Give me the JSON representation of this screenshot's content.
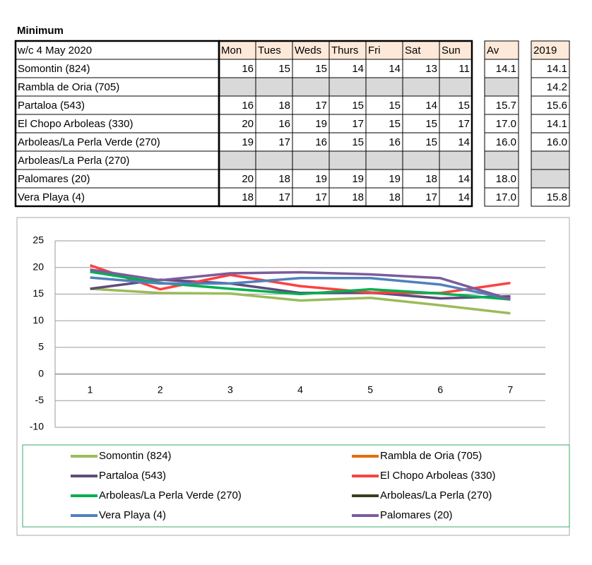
{
  "table": {
    "title": "Minimum",
    "header": [
      "w/c 4 May  2020",
      "Mon",
      "Tues",
      "Weds",
      "Thurs",
      "Fri",
      "Sat",
      "Sun",
      "Av",
      "2019"
    ],
    "rows": [
      [
        "Somontin (824)",
        "16",
        "15",
        "15",
        "14",
        "14",
        "13",
        "11",
        "14.1",
        "14.1"
      ],
      [
        "Rambla de Oria (705)",
        null,
        null,
        null,
        null,
        null,
        null,
        null,
        null,
        "14.2"
      ],
      [
        "Partaloa (543)",
        "16",
        "18",
        "17",
        "15",
        "15",
        "14",
        "15",
        "15.7",
        "15.6"
      ],
      [
        "El Chopo Arboleas (330)",
        "20",
        "16",
        "19",
        "17",
        "15",
        "15",
        "17",
        "17.0",
        "14.1"
      ],
      [
        "Arboleas/La Perla Verde (270)",
        "19",
        "17",
        "16",
        "15",
        "16",
        "15",
        "14",
        "16.0",
        "16.0"
      ],
      [
        "Arboleas/La Perla (270)",
        null,
        null,
        null,
        null,
        null,
        null,
        null,
        null,
        null
      ],
      [
        "Palomares (20)",
        "20",
        "18",
        "19",
        "19",
        "19",
        "18",
        "14",
        "18.0",
        null
      ],
      [
        "Vera Playa (4)",
        "18",
        "17",
        "17",
        "18",
        "18",
        "17",
        "14",
        "17.0",
        "15.8"
      ]
    ]
  },
  "chart_data": {
    "type": "line",
    "categories": [
      "1",
      "2",
      "3",
      "4",
      "5",
      "6",
      "7"
    ],
    "ylim": [
      -10,
      25
    ],
    "yticks": [
      -10,
      -5,
      0,
      5,
      10,
      15,
      20,
      25
    ],
    "series": [
      {
        "name": "Somontin (824)",
        "color": "#9bbb59",
        "values": [
          16,
          15.2,
          15.1,
          13.8,
          14.3,
          12.9,
          11.4
        ]
      },
      {
        "name": "Rambla de Oria (705)",
        "color": "#e46c0a",
        "values": [
          null,
          null,
          null,
          null,
          null,
          null,
          null
        ]
      },
      {
        "name": "Partaloa (543)",
        "color": "#604a7b",
        "values": [
          16,
          17.7,
          17,
          15.2,
          15.3,
          14.2,
          14.6
        ]
      },
      {
        "name": "El Chopo Arboleas (330)",
        "color": "#ff4040",
        "values": [
          20.4,
          15.9,
          18.6,
          16.5,
          15.3,
          15.2,
          17.1
        ]
      },
      {
        "name": "Arboleas/La Perla Verde (270)",
        "color": "#00b050",
        "values": [
          19.2,
          17.1,
          16,
          15,
          15.9,
          15.1,
          14
        ]
      },
      {
        "name": "Arboleas/La Perla (270)",
        "color": "#3d3d1f",
        "values": [
          null,
          null,
          null,
          null,
          null,
          null,
          null
        ]
      },
      {
        "name": "Vera Playa (4)",
        "color": "#4f81bd",
        "values": [
          18.1,
          17,
          17,
          18,
          18,
          16.8,
          14.1
        ]
      },
      {
        "name": "Palomares (20)",
        "color": "#7b5c9c",
        "values": [
          19.6,
          17.6,
          18.9,
          19.1,
          18.7,
          18,
          14
        ]
      }
    ]
  }
}
